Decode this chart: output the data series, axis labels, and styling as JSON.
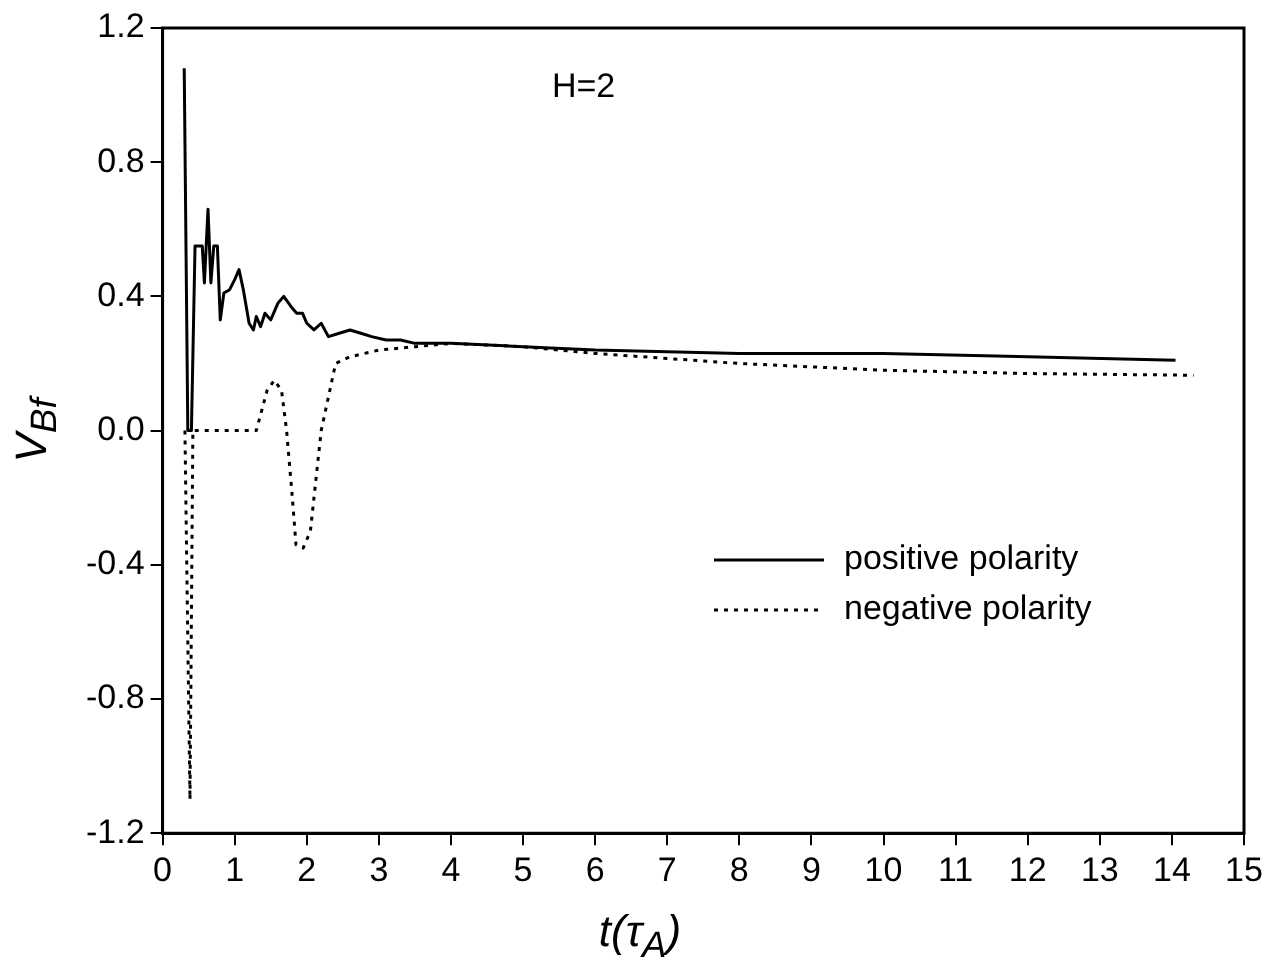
{
  "chart_data": {
    "type": "line",
    "xlabel": "t(τ$_{A}$)",
    "ylabel": "V$_{Bf}$",
    "annotations": [
      "H=2"
    ],
    "xlim": [
      0,
      15
    ],
    "xticks": [
      0,
      1,
      2,
      3,
      4,
      5,
      6,
      7,
      8,
      9,
      10,
      11,
      12,
      13,
      14,
      15
    ],
    "ylim": [
      -1.2,
      1.2
    ],
    "yticks": [
      -1.2,
      -0.8,
      -0.4,
      {
        "value": 0,
        "label": "0.0"
      },
      0.4,
      0.8,
      1.2
    ],
    "grid": false,
    "legend": "bottom right",
    "marker": "none",
    "series": [
      {
        "name": "positive polarity",
        "color": "#000000",
        "line_style": "solid",
        "x": [
          0.3,
          0.35,
          0.4,
          0.45,
          0.55,
          0.58,
          0.63,
          0.67,
          0.71,
          0.76,
          0.8,
          0.85,
          0.93,
          1.0,
          1.06,
          1.12,
          1.2,
          1.26,
          1.3,
          1.36,
          1.42,
          1.5,
          1.6,
          1.68,
          1.78,
          1.86,
          1.94,
          2.0,
          2.1,
          2.2,
          2.3,
          2.45,
          2.6,
          2.75,
          2.9,
          3.1,
          3.3,
          3.5,
          4,
          5,
          6,
          8,
          10,
          12,
          14.05
        ],
        "values": [
          1.08,
          0,
          0,
          0.55,
          0.55,
          0.44,
          0.66,
          0.44,
          0.55,
          0.55,
          0.33,
          0.41,
          0.42,
          0.45,
          0.48,
          0.42,
          0.32,
          0.3,
          0.34,
          0.31,
          0.35,
          0.33,
          0.38,
          0.4,
          0.37,
          0.35,
          0.35,
          0.32,
          0.3,
          0.32,
          0.28,
          0.29,
          0.3,
          0.29,
          0.28,
          0.27,
          0.27,
          0.26,
          0.26,
          0.25,
          0.24,
          0.23,
          0.23,
          0.22,
          0.21
        ]
      },
      {
        "name": "negative polarity",
        "color": "#000000",
        "line_style": "dotted",
        "x": [
          0.31,
          0.38,
          0.42,
          0.45,
          1.3,
          1.45,
          1.55,
          1.65,
          1.72,
          1.8,
          1.85,
          1.95,
          2.05,
          2.2,
          2.4,
          2.6,
          3,
          3.5,
          4,
          5,
          6,
          8,
          10,
          12,
          14.3
        ],
        "values": [
          0,
          -1.1,
          0,
          0,
          0,
          0.12,
          0.15,
          0.12,
          0,
          -0.2,
          -0.34,
          -0.35,
          -0.3,
          0,
          0.2,
          0.22,
          0.24,
          0.25,
          0.26,
          0.25,
          0.23,
          0.2,
          0.18,
          0.17,
          0.165
        ]
      }
    ]
  }
}
